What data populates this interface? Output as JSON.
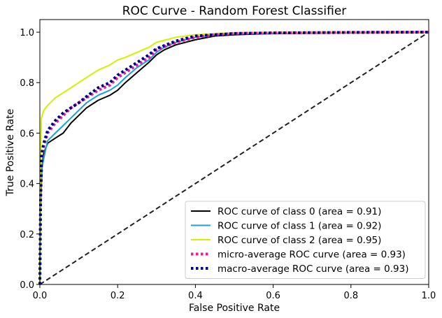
{
  "chart_data": {
    "type": "line",
    "title": "ROC Curve - Random Forest Classifier",
    "xlabel": "False Positive Rate",
    "ylabel": "True Positive Rate",
    "xlim": [
      0.0,
      1.0
    ],
    "ylim": [
      0.0,
      1.05
    ],
    "xticks": [
      "0.0",
      "0.2",
      "0.4",
      "0.6",
      "0.8",
      "1.0"
    ],
    "yticks": [
      "0.0",
      "0.2",
      "0.4",
      "0.6",
      "0.8",
      "1.0"
    ],
    "grid": false,
    "legend_position": "lower-right",
    "series": [
      {
        "name": "ROC curve of class 0 (area = 0.91)",
        "color": "#000000",
        "style": "solid",
        "x": [
          0,
          0.002,
          0.005,
          0.01,
          0.02,
          0.04,
          0.06,
          0.08,
          0.1,
          0.12,
          0.15,
          0.18,
          0.2,
          0.22,
          0.25,
          0.28,
          0.3,
          0.32,
          0.35,
          0.4,
          0.45,
          0.5,
          0.6,
          0.8,
          1.0
        ],
        "y": [
          0,
          0.3,
          0.46,
          0.52,
          0.56,
          0.58,
          0.6,
          0.64,
          0.67,
          0.7,
          0.73,
          0.75,
          0.77,
          0.8,
          0.84,
          0.88,
          0.91,
          0.93,
          0.95,
          0.97,
          0.985,
          0.99,
          0.995,
          0.998,
          1.0
        ]
      },
      {
        "name": "ROC curve of class 1 (area = 0.92)",
        "color": "#1f9fd6",
        "style": "solid",
        "x": [
          0,
          0.002,
          0.005,
          0.01,
          0.02,
          0.04,
          0.06,
          0.08,
          0.1,
          0.12,
          0.15,
          0.18,
          0.2,
          0.22,
          0.25,
          0.28,
          0.3,
          0.32,
          0.35,
          0.4,
          0.45,
          0.5,
          0.6,
          0.8,
          1.0
        ],
        "y": [
          0,
          0.32,
          0.46,
          0.5,
          0.57,
          0.6,
          0.63,
          0.66,
          0.69,
          0.72,
          0.75,
          0.77,
          0.79,
          0.82,
          0.86,
          0.89,
          0.92,
          0.94,
          0.96,
          0.98,
          0.99,
          0.993,
          0.996,
          0.998,
          1.0
        ]
      },
      {
        "name": "ROC curve of class 2 (area = 0.95)",
        "color": "#d4f000",
        "style": "solid",
        "x": [
          0,
          0.002,
          0.004,
          0.01,
          0.02,
          0.04,
          0.06,
          0.08,
          0.1,
          0.12,
          0.15,
          0.18,
          0.2,
          0.22,
          0.25,
          0.28,
          0.3,
          0.35,
          0.4,
          0.45,
          0.5,
          0.6,
          0.8,
          1.0
        ],
        "y": [
          0,
          0.5,
          0.66,
          0.69,
          0.71,
          0.74,
          0.76,
          0.78,
          0.8,
          0.82,
          0.85,
          0.87,
          0.89,
          0.9,
          0.92,
          0.94,
          0.96,
          0.98,
          0.99,
          0.995,
          0.997,
          0.998,
          0.999,
          1.0
        ]
      },
      {
        "name": "micro-average ROC curve (area = 0.93)",
        "color": "#ee1b98",
        "style": "dotted",
        "x": [
          0,
          0.002,
          0.005,
          0.01,
          0.02,
          0.04,
          0.06,
          0.08,
          0.1,
          0.12,
          0.15,
          0.18,
          0.2,
          0.22,
          0.25,
          0.28,
          0.3,
          0.35,
          0.4,
          0.45,
          0.5,
          0.6,
          0.8,
          1.0
        ],
        "y": [
          0,
          0.33,
          0.5,
          0.55,
          0.6,
          0.64,
          0.67,
          0.7,
          0.72,
          0.74,
          0.77,
          0.79,
          0.82,
          0.84,
          0.87,
          0.9,
          0.93,
          0.96,
          0.98,
          0.99,
          0.995,
          0.997,
          0.999,
          1.0
        ]
      },
      {
        "name": "macro-average ROC curve (area = 0.93)",
        "color": "#000080",
        "style": "dotted",
        "x": [
          0,
          0.002,
          0.005,
          0.01,
          0.02,
          0.04,
          0.06,
          0.08,
          0.1,
          0.12,
          0.15,
          0.18,
          0.2,
          0.22,
          0.25,
          0.28,
          0.3,
          0.35,
          0.4,
          0.45,
          0.5,
          0.6,
          0.8,
          1.0
        ],
        "y": [
          0,
          0.35,
          0.52,
          0.56,
          0.61,
          0.65,
          0.68,
          0.7,
          0.72,
          0.745,
          0.78,
          0.8,
          0.83,
          0.85,
          0.88,
          0.91,
          0.935,
          0.965,
          0.985,
          0.99,
          0.995,
          0.997,
          0.999,
          1.0
        ]
      }
    ],
    "reference_line": {
      "x": [
        0,
        1
      ],
      "y": [
        0,
        1
      ],
      "color": "#222222",
      "style": "dashed"
    }
  }
}
